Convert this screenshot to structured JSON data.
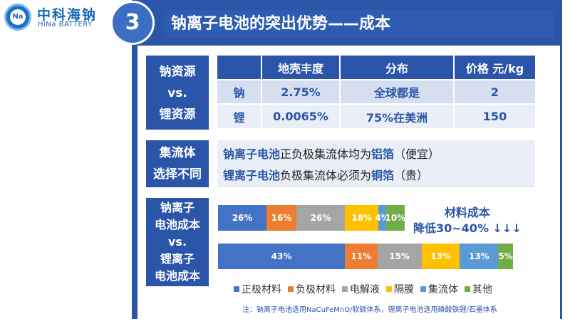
{
  "logo": {
    "cn": "中科海钠",
    "en": "HiNa BATTERY",
    "badge": "Na"
  },
  "header": {
    "number": "3",
    "title": "钠离子电池的突出优势——成本"
  },
  "resource": {
    "label_lines": [
      "钠资源",
      "vs.",
      "锂资源"
    ],
    "columns": [
      "",
      "地壳丰度",
      "分布",
      "价格 元/kg"
    ],
    "rows": [
      [
        "钠",
        "2.75%",
        "全球都是",
        "2"
      ],
      [
        "锂",
        "0.0065%",
        "75%在美洲",
        "150"
      ]
    ]
  },
  "collector": {
    "label_lines": [
      "集流体",
      "选择不同"
    ],
    "line1": {
      "a": "钠离子电池",
      "b": "正负极集流体均为",
      "c": "铝箔",
      "d": "（便宜）"
    },
    "line2": {
      "a": "锂离子电池",
      "b": "负极集流体必须为",
      "c": "铜箔",
      "d": "（贵）"
    }
  },
  "cost": {
    "label_lines": [
      "钠离子",
      "电池成本",
      "vs.",
      "锂离子",
      "电池成本"
    ],
    "note_lines": [
      "材料成本",
      "降低30~40% ↓↓↓"
    ]
  },
  "chart_data": {
    "type": "bar",
    "stacked": true,
    "orientation": "horizontal",
    "categories": [
      "正极材料",
      "负极材料",
      "电解液",
      "隔膜",
      "集流体",
      "其他"
    ],
    "colors": [
      "#4472c4",
      "#ed7d31",
      "#a5a5a5",
      "#ffc000",
      "#5b9bd5",
      "#70ad47"
    ],
    "series": [
      {
        "values": [
          26,
          16,
          26,
          18,
          4,
          10
        ],
        "labels": [
          "26%",
          "16%",
          "26%",
          "18%",
          "4%",
          "10%"
        ]
      },
      {
        "values": [
          43,
          11,
          15,
          13,
          13,
          5
        ],
        "labels": [
          "43%",
          "11%",
          "15%",
          "13%",
          "13%",
          "5%"
        ]
      }
    ]
  },
  "footnote": "注：钠离子电池选用NaCuFeMnO/软碳体系，锂离子电池选用磷酸铁锂/石墨体系"
}
